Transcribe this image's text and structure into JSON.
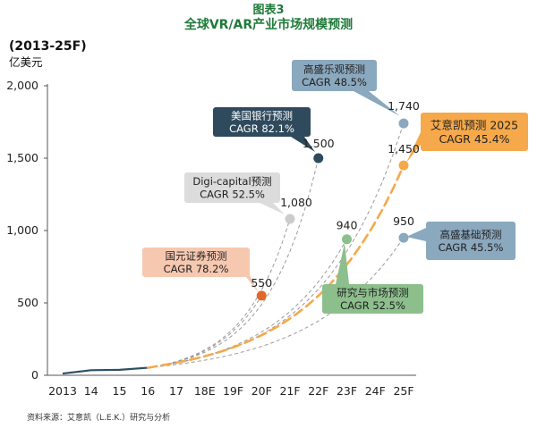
{
  "title_line1": "图表3",
  "title_line2": "全球VR/AR产业市场规模预测",
  "period": "(2013-25F)",
  "unit": "亿美元",
  "source": "资料来源：艾意凯（L.E.K.）研究与分析",
  "colors": {
    "title": "#1f7a3a",
    "base_line": "#2b4f63",
    "lek": "#f5a94a",
    "gs": "#8aa8be",
    "bofa": "#2f4a5c",
    "digi": "#cccccc",
    "rm": "#8cbf8c",
    "gy": "#f6c8b0",
    "gy_dot": "#e0682a",
    "dashed": "#9a9a9a"
  },
  "chart_data": {
    "type": "line",
    "x": [
      "2013",
      "14",
      "15",
      "16",
      "17",
      "18E",
      "19F",
      "20F",
      "21F",
      "22F",
      "23F",
      "24F",
      "25F"
    ],
    "ylim": [
      0,
      2000
    ],
    "yticks": [
      "0",
      "500",
      "1,000",
      "1,500",
      "2,000"
    ],
    "ytick_values": [
      0,
      500,
      1000,
      1500,
      2000
    ],
    "historical": {
      "x": [
        "2013",
        "14",
        "15",
        "16"
      ],
      "values": [
        12,
        35,
        38,
        52
      ]
    },
    "forecasts": [
      {
        "key": "gy",
        "label": "国元证券预测",
        "cagr": "CAGR 78.2%",
        "end_x": "20F",
        "end_value": 550,
        "value_label": "550"
      },
      {
        "key": "digi",
        "label": "Digi-capital预测",
        "cagr": "CAGR 52.5%",
        "end_x": "21F",
        "end_value": 1080,
        "value_label": "1,080"
      },
      {
        "key": "bofa",
        "label": "美国银行预测",
        "cagr": "CAGR 82.1%",
        "end_x": "22F",
        "end_value": 1500,
        "value_label": "1,500"
      },
      {
        "key": "rm",
        "label": "研究与市场预测",
        "cagr": "CAGR 52.5%",
        "end_x": "23F",
        "end_value": 940,
        "value_label": "940"
      },
      {
        "key": "gs_high",
        "label": "高盛乐观预测",
        "cagr": "CAGR 48.5%",
        "end_x": "25F",
        "end_value": 1740,
        "value_label": "1,740"
      },
      {
        "key": "lek",
        "label": "艾意凯预测 2025",
        "cagr": "CAGR 45.4%",
        "end_x": "25F",
        "end_value": 1450,
        "value_label": "1,450"
      },
      {
        "key": "gs_base",
        "label": "高盛基础预测",
        "cagr": "CAGR 45.5%",
        "end_x": "25F",
        "end_value": 950,
        "value_label": "950"
      }
    ]
  }
}
